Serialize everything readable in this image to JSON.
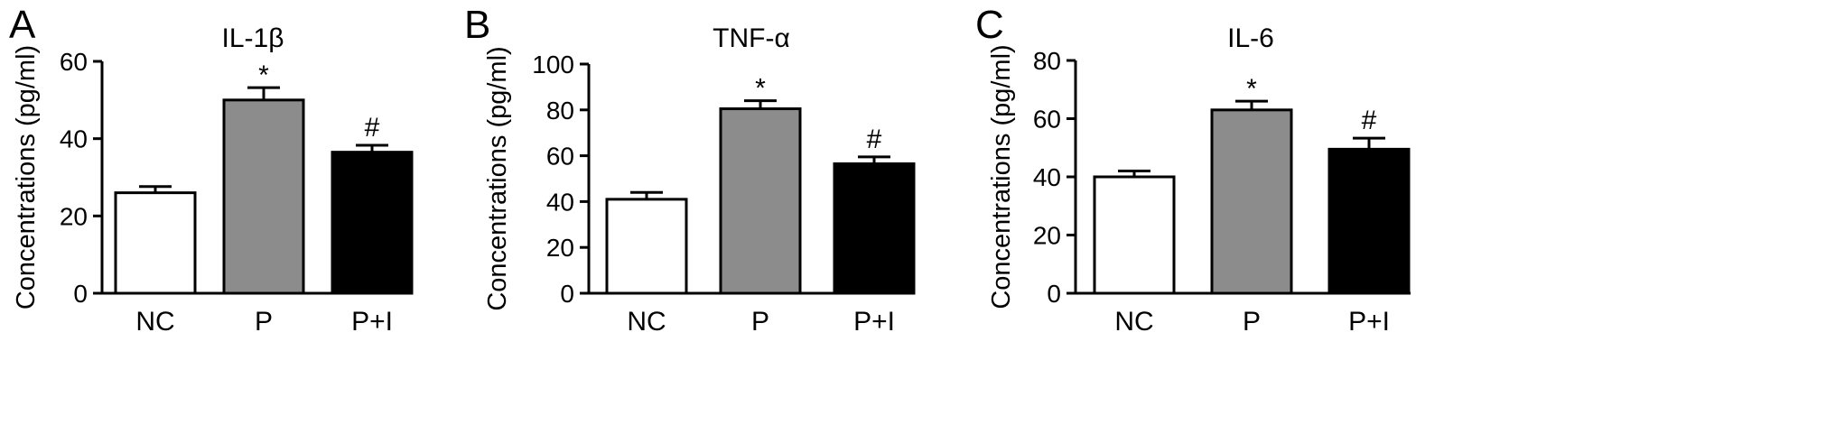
{
  "colors": {
    "axis": "#000000",
    "NC": "#ffffff",
    "P": "#8c8c8c",
    "P+I": "#000000"
  },
  "chart_data": [
    {
      "panel": "A",
      "type": "bar",
      "title": "IL-1β",
      "ylabel": "Concentrations (pg/ml)",
      "xlabel": "",
      "ylim": [
        0,
        60
      ],
      "yticks": [
        0,
        20,
        40,
        60
      ],
      "categories": [
        "NC",
        "P",
        "P+I"
      ],
      "values": [
        26,
        50,
        36.5
      ],
      "errors": [
        1.6,
        3.2,
        1.8
      ],
      "significance": [
        "",
        "*",
        "#"
      ],
      "grid": false
    },
    {
      "panel": "B",
      "type": "bar",
      "title": "TNF-α",
      "ylabel": "Concentrations (pg/ml)",
      "xlabel": "",
      "ylim": [
        0,
        100
      ],
      "yticks": [
        0,
        20,
        40,
        60,
        80,
        100
      ],
      "categories": [
        "NC",
        "P",
        "P+I"
      ],
      "values": [
        41,
        80.5,
        56.5
      ],
      "errors": [
        3,
        3.5,
        3
      ],
      "significance": [
        "",
        "*",
        "#"
      ],
      "grid": false
    },
    {
      "panel": "C",
      "type": "bar",
      "title": "IL-6",
      "ylabel": "Concentrations (pg/ml)",
      "xlabel": "",
      "ylim": [
        0,
        80
      ],
      "yticks": [
        0,
        20,
        40,
        60,
        80
      ],
      "categories": [
        "NC",
        "P",
        "P+I"
      ],
      "values": [
        40,
        63,
        49.5
      ],
      "errors": [
        2,
        3,
        3.8
      ],
      "significance": [
        "",
        "*",
        "#"
      ],
      "grid": false
    }
  ]
}
